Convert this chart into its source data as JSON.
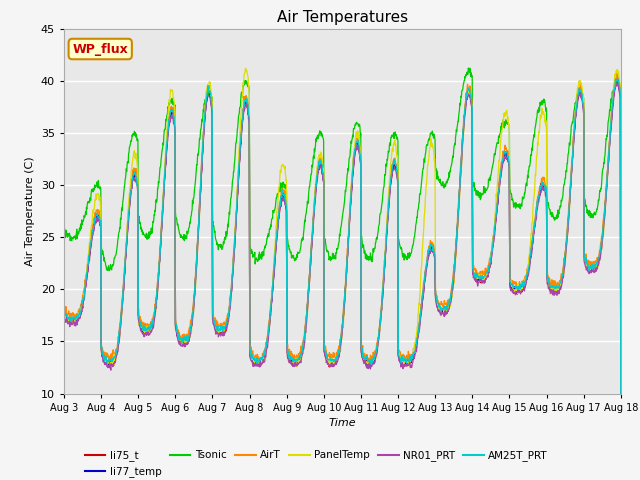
{
  "title": "Air Temperatures",
  "xlabel": "Time",
  "ylabel": "Air Temperature (C)",
  "ylim": [
    10,
    45
  ],
  "background_color": "#e8e8e8",
  "fig_facecolor": "#f5f5f5",
  "legend_box_label": "WP_flux",
  "legend_box_facecolor": "#ffffcc",
  "legend_box_edgecolor": "#cc8800",
  "series": [
    {
      "label": "li75_t",
      "color": "#cc0000"
    },
    {
      "label": "li77_temp",
      "color": "#0000cc"
    },
    {
      "label": "Tsonic",
      "color": "#00cc00"
    },
    {
      "label": "AirT",
      "color": "#ff8800"
    },
    {
      "label": "PanelTemp",
      "color": "#dddd00"
    },
    {
      "label": "NR01_PRT",
      "color": "#aa44aa"
    },
    {
      "label": "AM25T_PRT",
      "color": "#00cccc"
    }
  ],
  "x_tick_labels": [
    "Aug 3",
    "Aug 4",
    "Aug 5",
    "Aug 6",
    "Aug 7",
    "Aug 8",
    "Aug 9",
    "Aug 10",
    "Aug 11",
    "Aug 12",
    "Aug 13",
    "Aug 14",
    "Aug 15",
    "Aug 16",
    "Aug 17",
    "Aug 18"
  ],
  "base_peaks": [
    27,
    31,
    37,
    39,
    38,
    29,
    32,
    34,
    32,
    24,
    39,
    33,
    30,
    39,
    40
  ],
  "base_mins": [
    17,
    13,
    16,
    15,
    16,
    13,
    13,
    13,
    13,
    13,
    18,
    21,
    20,
    20,
    22
  ],
  "tsonic_offset_peaks": [
    3,
    4,
    1,
    0,
    2,
    1,
    3,
    2,
    3,
    11,
    2,
    3,
    8,
    0,
    0
  ],
  "tsonic_offset_mins": [
    8,
    9,
    9,
    10,
    8,
    10,
    10,
    10,
    10,
    10,
    12,
    8,
    8,
    7,
    5
  ],
  "panel_offset": [
    2,
    2,
    2,
    1,
    3,
    3,
    1,
    1,
    2,
    10,
    0,
    4,
    7,
    1,
    1
  ]
}
